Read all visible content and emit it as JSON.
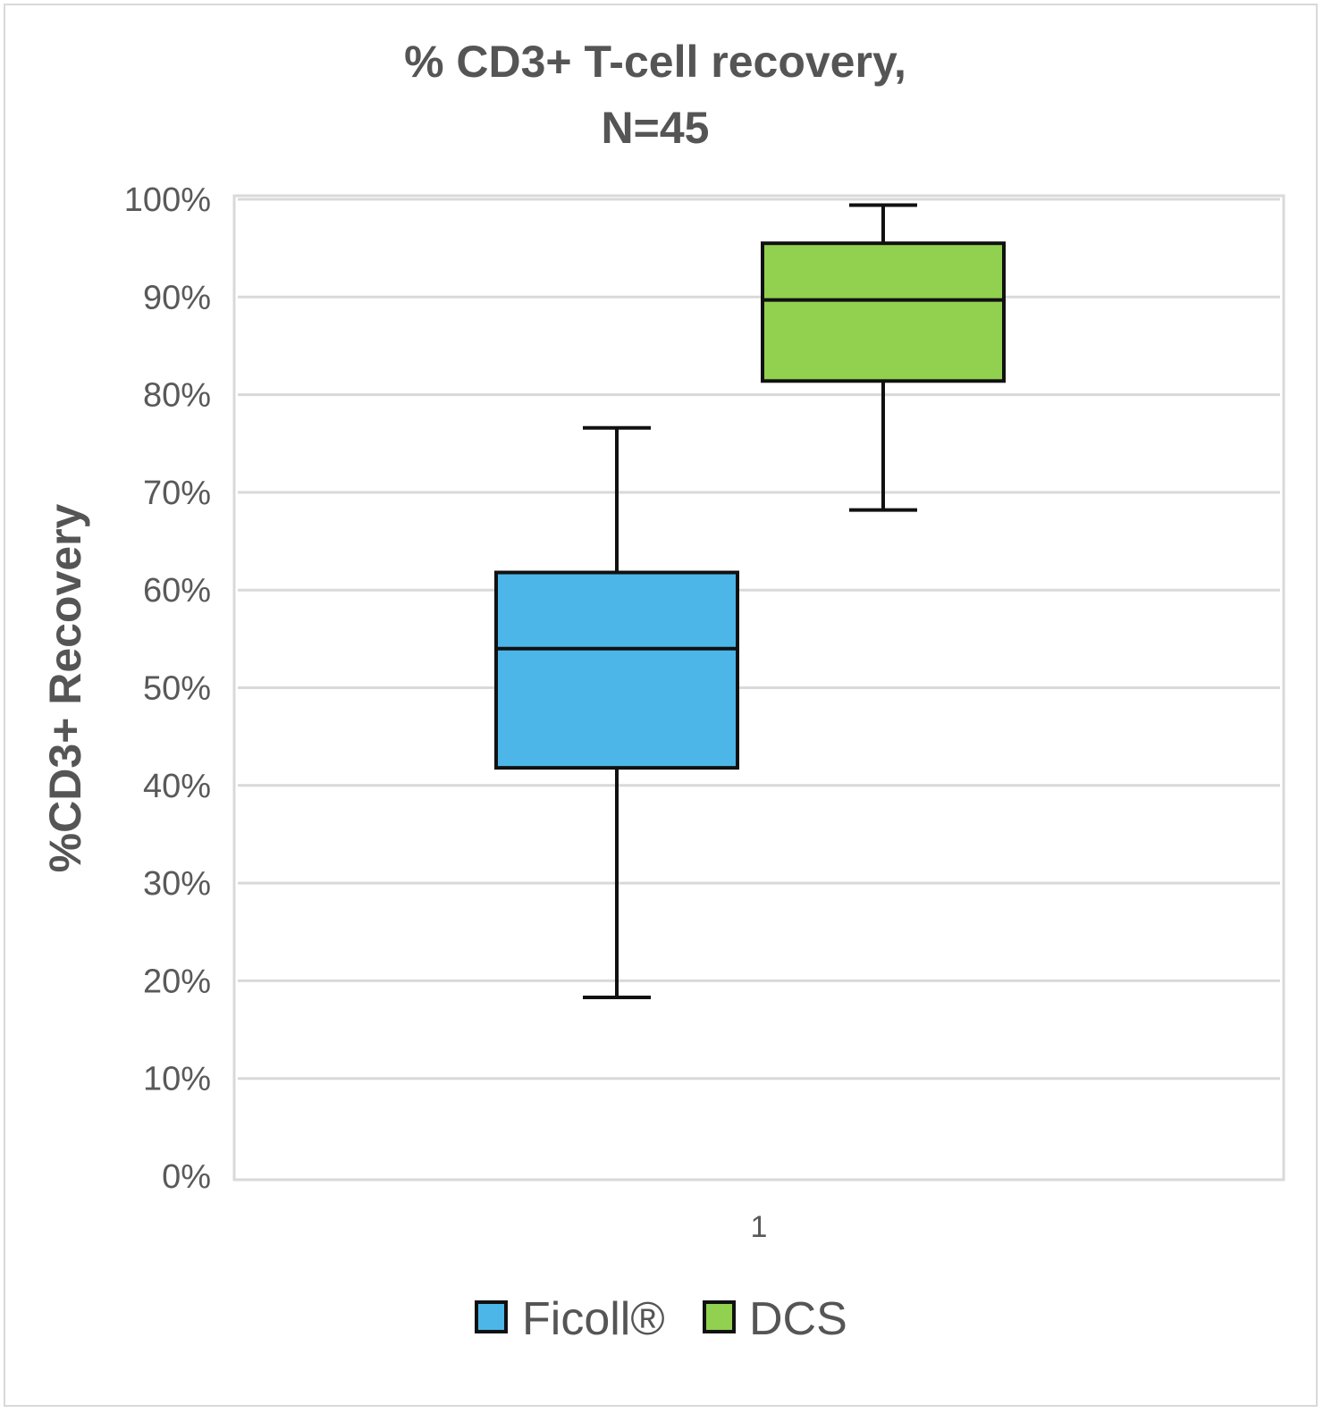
{
  "chart_data": {
    "type": "box",
    "title": [
      "% CD3+ T-cell recovery,",
      "N=45"
    ],
    "xlabel": "",
    "ylabel": "%CD3+ Recovery",
    "ylim": [
      0,
      100
    ],
    "yticks": [
      0,
      10,
      20,
      30,
      40,
      50,
      60,
      70,
      80,
      90,
      100
    ],
    "ytick_labels": [
      "0%",
      "10%",
      "20%",
      "30%",
      "40%",
      "50%",
      "60%",
      "70%",
      "80%",
      "90%",
      "100%"
    ],
    "categories": [
      "1"
    ],
    "grid": true,
    "legend_position": "bottom",
    "series": [
      {
        "name": "Ficoll®",
        "color": "#4db6e8",
        "whisker_low": 18.3,
        "q1": 41.8,
        "median": 54.0,
        "q3": 61.8,
        "whisker_high": 76.6
      },
      {
        "name": "DCS",
        "color": "#92d050",
        "whisker_low": 68.2,
        "q1": 81.4,
        "median": 89.7,
        "q3": 95.5,
        "whisker_high": 99.4
      }
    ]
  }
}
